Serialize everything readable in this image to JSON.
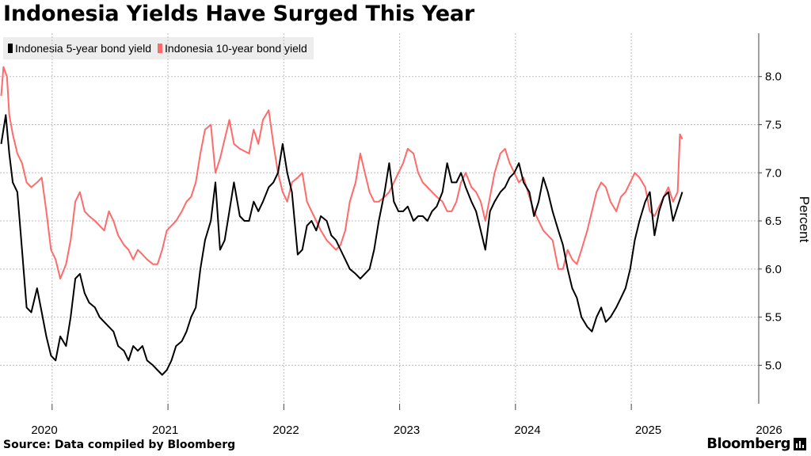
{
  "title": "Indonesia Yields Have Surged This Year",
  "source": "Source: Data compiled by Bloomberg",
  "brand": "Bloomberg",
  "brand_icon": "bloomberg-bars-icon",
  "chart_data": {
    "type": "line",
    "ylabel": "Percent",
    "xlabel": "",
    "ylim": [
      4.6,
      8.45
    ],
    "xlim": [
      2019.85,
      2026.4
    ],
    "yticks": [
      5.0,
      5.5,
      6.0,
      6.5,
      7.0,
      7.5,
      8.0
    ],
    "xticks": [
      {
        "label": "2020",
        "x": 2020.0
      },
      {
        "label": "2021",
        "x": 2021.0
      },
      {
        "label": "2022",
        "x": 2022.0
      },
      {
        "label": "2023",
        "x": 2023.0
      },
      {
        "label": "2024",
        "x": 2024.0
      },
      {
        "label": "2025",
        "x": 2025.0
      },
      {
        "label": "2026",
        "x": 2026.0
      }
    ],
    "grid": true,
    "legend_position": "top-left",
    "series": [
      {
        "name": "Indonesia 5-year bond yield",
        "color": "#000000",
        "points": [
          [
            2019.86,
            7.3
          ],
          [
            2019.9,
            7.6
          ],
          [
            2019.93,
            7.2
          ],
          [
            2019.96,
            6.9
          ],
          [
            2020.0,
            6.8
          ],
          [
            2020.04,
            6.2
          ],
          [
            2020.08,
            5.6
          ],
          [
            2020.12,
            5.55
          ],
          [
            2020.17,
            5.8
          ],
          [
            2020.21,
            5.55
          ],
          [
            2020.25,
            5.3
          ],
          [
            2020.29,
            5.1
          ],
          [
            2020.33,
            5.05
          ],
          [
            2020.37,
            5.3
          ],
          [
            2020.42,
            5.2
          ],
          [
            2020.46,
            5.5
          ],
          [
            2020.5,
            5.9
          ],
          [
            2020.54,
            5.95
          ],
          [
            2020.58,
            5.75
          ],
          [
            2020.62,
            5.65
          ],
          [
            2020.67,
            5.6
          ],
          [
            2020.71,
            5.5
          ],
          [
            2020.75,
            5.45
          ],
          [
            2020.79,
            5.4
          ],
          [
            2020.83,
            5.35
          ],
          [
            2020.87,
            5.2
          ],
          [
            2020.92,
            5.15
          ],
          [
            2020.96,
            5.05
          ],
          [
            2021.0,
            5.2
          ],
          [
            2021.04,
            5.15
          ],
          [
            2021.08,
            5.2
          ],
          [
            2021.12,
            5.05
          ],
          [
            2021.17,
            5.0
          ],
          [
            2021.21,
            4.95
          ],
          [
            2021.25,
            4.9
          ],
          [
            2021.29,
            4.95
          ],
          [
            2021.33,
            5.05
          ],
          [
            2021.37,
            5.2
          ],
          [
            2021.42,
            5.25
          ],
          [
            2021.46,
            5.35
          ],
          [
            2021.5,
            5.5
          ],
          [
            2021.54,
            5.6
          ],
          [
            2021.58,
            6.0
          ],
          [
            2021.62,
            6.3
          ],
          [
            2021.67,
            6.5
          ],
          [
            2021.71,
            6.9
          ],
          [
            2021.75,
            6.2
          ],
          [
            2021.79,
            6.3
          ],
          [
            2021.83,
            6.6
          ],
          [
            2021.87,
            6.9
          ],
          [
            2021.92,
            6.55
          ],
          [
            2021.96,
            6.5
          ],
          [
            2022.0,
            6.5
          ],
          [
            2022.04,
            6.7
          ],
          [
            2022.08,
            6.6
          ],
          [
            2022.12,
            6.7
          ],
          [
            2022.17,
            6.85
          ],
          [
            2022.21,
            6.9
          ],
          [
            2022.25,
            7.0
          ],
          [
            2022.29,
            7.3
          ],
          [
            2022.33,
            7.0
          ],
          [
            2022.37,
            6.8
          ],
          [
            2022.42,
            6.15
          ],
          [
            2022.46,
            6.2
          ],
          [
            2022.5,
            6.45
          ],
          [
            2022.54,
            6.5
          ],
          [
            2022.58,
            6.4
          ],
          [
            2022.62,
            6.55
          ],
          [
            2022.67,
            6.5
          ],
          [
            2022.71,
            6.35
          ],
          [
            2022.75,
            6.3
          ],
          [
            2022.79,
            6.2
          ],
          [
            2022.83,
            6.1
          ],
          [
            2022.87,
            6.0
          ],
          [
            2022.92,
            5.95
          ],
          [
            2022.96,
            5.9
          ],
          [
            2023.0,
            5.95
          ],
          [
            2023.04,
            6.0
          ],
          [
            2023.08,
            6.2
          ],
          [
            2023.12,
            6.5
          ],
          [
            2023.17,
            6.8
          ],
          [
            2023.21,
            7.1
          ],
          [
            2023.25,
            6.7
          ],
          [
            2023.29,
            6.6
          ],
          [
            2023.33,
            6.6
          ],
          [
            2023.37,
            6.65
          ],
          [
            2023.42,
            6.5
          ],
          [
            2023.46,
            6.55
          ],
          [
            2023.5,
            6.55
          ],
          [
            2023.54,
            6.5
          ],
          [
            2023.58,
            6.6
          ],
          [
            2023.62,
            6.65
          ],
          [
            2023.67,
            6.8
          ],
          [
            2023.71,
            7.1
          ],
          [
            2023.75,
            6.9
          ],
          [
            2023.79,
            6.9
          ],
          [
            2023.83,
            7.0
          ],
          [
            2023.87,
            6.85
          ],
          [
            2023.92,
            6.7
          ],
          [
            2023.96,
            6.6
          ],
          [
            2024.0,
            6.4
          ],
          [
            2024.04,
            6.2
          ],
          [
            2024.08,
            6.6
          ],
          [
            2024.12,
            6.7
          ],
          [
            2024.17,
            6.8
          ],
          [
            2024.21,
            6.85
          ],
          [
            2024.25,
            6.95
          ],
          [
            2024.29,
            7.0
          ],
          [
            2024.33,
            7.1
          ],
          [
            2024.37,
            6.9
          ],
          [
            2024.42,
            6.8
          ],
          [
            2024.46,
            6.55
          ],
          [
            2024.5,
            6.7
          ],
          [
            2024.54,
            6.95
          ],
          [
            2024.58,
            6.8
          ],
          [
            2024.62,
            6.6
          ],
          [
            2024.67,
            6.4
          ],
          [
            2024.71,
            6.25
          ],
          [
            2024.75,
            6.0
          ],
          [
            2024.79,
            5.8
          ],
          [
            2024.83,
            5.7
          ],
          [
            2024.87,
            5.5
          ],
          [
            2024.92,
            5.4
          ],
          [
            2024.96,
            5.35
          ],
          [
            2025.0,
            5.5
          ],
          [
            2025.04,
            5.6
          ],
          [
            2025.08,
            5.45
          ],
          [
            2025.12,
            5.5
          ],
          [
            2025.17,
            5.6
          ],
          [
            2025.21,
            5.7
          ],
          [
            2025.25,
            5.8
          ],
          [
            2025.29,
            6.0
          ],
          [
            2025.33,
            6.3
          ],
          [
            2025.37,
            6.5
          ],
          [
            2025.42,
            6.7
          ],
          [
            2025.46,
            6.8
          ],
          [
            2025.5,
            6.35
          ],
          [
            2025.54,
            6.6
          ],
          [
            2025.58,
            6.75
          ],
          [
            2025.62,
            6.8
          ],
          [
            2025.66,
            6.5
          ],
          [
            2025.7,
            6.65
          ],
          [
            2025.74,
            6.8
          ]
        ]
      },
      {
        "name": "Indonesia 10-year bond yield",
        "color": "#ff6a6a",
        "points": [
          [
            2019.86,
            7.8
          ],
          [
            2019.88,
            8.1
          ],
          [
            2019.91,
            8.0
          ],
          [
            2019.93,
            7.6
          ],
          [
            2019.96,
            7.4
          ],
          [
            2020.0,
            7.2
          ],
          [
            2020.04,
            7.1
          ],
          [
            2020.08,
            6.9
          ],
          [
            2020.12,
            6.85
          ],
          [
            2020.17,
            6.9
          ],
          [
            2020.21,
            6.95
          ],
          [
            2020.25,
            6.6
          ],
          [
            2020.29,
            6.2
          ],
          [
            2020.33,
            6.1
          ],
          [
            2020.37,
            5.9
          ],
          [
            2020.42,
            6.05
          ],
          [
            2020.46,
            6.3
          ],
          [
            2020.5,
            6.7
          ],
          [
            2020.54,
            6.8
          ],
          [
            2020.58,
            6.6
          ],
          [
            2020.62,
            6.55
          ],
          [
            2020.67,
            6.5
          ],
          [
            2020.71,
            6.45
          ],
          [
            2020.75,
            6.4
          ],
          [
            2020.79,
            6.6
          ],
          [
            2020.83,
            6.5
          ],
          [
            2020.87,
            6.35
          ],
          [
            2020.92,
            6.25
          ],
          [
            2020.96,
            6.2
          ],
          [
            2021.0,
            6.1
          ],
          [
            2021.04,
            6.2
          ],
          [
            2021.08,
            6.15
          ],
          [
            2021.12,
            6.1
          ],
          [
            2021.17,
            6.05
          ],
          [
            2021.21,
            6.05
          ],
          [
            2021.25,
            6.2
          ],
          [
            2021.29,
            6.4
          ],
          [
            2021.33,
            6.45
          ],
          [
            2021.37,
            6.5
          ],
          [
            2021.42,
            6.6
          ],
          [
            2021.46,
            6.7
          ],
          [
            2021.5,
            6.75
          ],
          [
            2021.54,
            6.9
          ],
          [
            2021.58,
            7.2
          ],
          [
            2021.62,
            7.45
          ],
          [
            2021.67,
            7.5
          ],
          [
            2021.71,
            7.0
          ],
          [
            2021.75,
            7.15
          ],
          [
            2021.79,
            7.35
          ],
          [
            2021.83,
            7.55
          ],
          [
            2021.87,
            7.3
          ],
          [
            2021.92,
            7.25
          ],
          [
            2022.0,
            7.2
          ],
          [
            2022.04,
            7.45
          ],
          [
            2022.08,
            7.3
          ],
          [
            2022.12,
            7.55
          ],
          [
            2022.17,
            7.65
          ],
          [
            2022.21,
            7.3
          ],
          [
            2022.25,
            7.0
          ],
          [
            2022.29,
            6.8
          ],
          [
            2022.33,
            6.7
          ],
          [
            2022.37,
            6.9
          ],
          [
            2022.42,
            6.95
          ],
          [
            2022.46,
            7.0
          ],
          [
            2022.5,
            6.7
          ],
          [
            2022.54,
            6.6
          ],
          [
            2022.58,
            6.5
          ],
          [
            2022.62,
            6.4
          ],
          [
            2022.67,
            6.3
          ],
          [
            2022.71,
            6.25
          ],
          [
            2022.75,
            6.2
          ],
          [
            2022.79,
            6.25
          ],
          [
            2022.83,
            6.4
          ],
          [
            2022.87,
            6.7
          ],
          [
            2022.92,
            6.9
          ],
          [
            2022.96,
            7.2
          ],
          [
            2023.0,
            7.0
          ],
          [
            2023.04,
            6.8
          ],
          [
            2023.08,
            6.7
          ],
          [
            2023.12,
            6.7
          ],
          [
            2023.17,
            6.75
          ],
          [
            2023.21,
            6.8
          ],
          [
            2023.25,
            6.9
          ],
          [
            2023.29,
            7.0
          ],
          [
            2023.33,
            7.1
          ],
          [
            2023.37,
            7.25
          ],
          [
            2023.42,
            7.2
          ],
          [
            2023.46,
            7.0
          ],
          [
            2023.5,
            6.9
          ],
          [
            2023.54,
            6.85
          ],
          [
            2023.58,
            6.8
          ],
          [
            2023.62,
            6.75
          ],
          [
            2023.67,
            6.7
          ],
          [
            2023.71,
            6.6
          ],
          [
            2023.75,
            6.6
          ],
          [
            2023.79,
            6.7
          ],
          [
            2023.83,
            6.9
          ],
          [
            2023.87,
            7.0
          ],
          [
            2023.92,
            6.85
          ],
          [
            2023.96,
            6.8
          ],
          [
            2024.0,
            6.7
          ],
          [
            2024.04,
            6.5
          ],
          [
            2024.08,
            6.75
          ],
          [
            2024.12,
            7.0
          ],
          [
            2024.17,
            7.2
          ],
          [
            2024.21,
            7.25
          ],
          [
            2024.25,
            7.1
          ],
          [
            2024.29,
            7.0
          ],
          [
            2024.33,
            6.9
          ],
          [
            2024.37,
            6.95
          ],
          [
            2024.42,
            6.75
          ],
          [
            2024.46,
            6.6
          ],
          [
            2024.5,
            6.5
          ],
          [
            2024.54,
            6.4
          ],
          [
            2024.58,
            6.35
          ],
          [
            2024.62,
            6.3
          ],
          [
            2024.67,
            6.0
          ],
          [
            2024.71,
            6.0
          ],
          [
            2024.75,
            6.2
          ],
          [
            2024.79,
            6.1
          ],
          [
            2024.83,
            6.05
          ],
          [
            2024.87,
            6.2
          ],
          [
            2024.92,
            6.4
          ],
          [
            2024.96,
            6.6
          ],
          [
            2025.0,
            6.8
          ],
          [
            2025.04,
            6.9
          ],
          [
            2025.08,
            6.85
          ],
          [
            2025.12,
            6.7
          ],
          [
            2025.17,
            6.6
          ],
          [
            2025.21,
            6.75
          ],
          [
            2025.25,
            6.8
          ],
          [
            2025.29,
            6.9
          ],
          [
            2025.33,
            7.0
          ],
          [
            2025.37,
            6.95
          ],
          [
            2025.42,
            6.85
          ],
          [
            2025.46,
            6.6
          ],
          [
            2025.5,
            6.55
          ],
          [
            2025.54,
            6.65
          ],
          [
            2025.58,
            6.75
          ],
          [
            2025.62,
            6.85
          ],
          [
            2025.66,
            6.7
          ],
          [
            2025.7,
            6.8
          ],
          [
            2025.72,
            7.4
          ],
          [
            2025.74,
            7.35
          ]
        ]
      }
    ]
  }
}
